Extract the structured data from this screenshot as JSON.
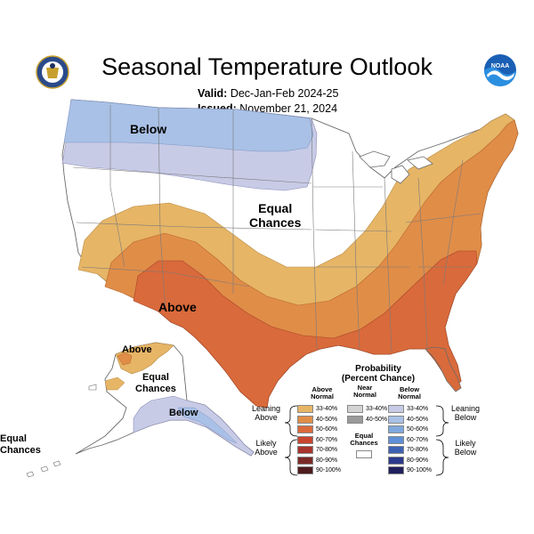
{
  "header": {
    "title": "Seasonal Temperature Outlook",
    "valid_label": "Valid:",
    "valid_value": "Dec-Jan-Feb 2024-25",
    "issued_label": "Issued:",
    "issued_value": "November 21, 2024",
    "noaa_text": "NOAA"
  },
  "map_labels": {
    "conus_below": "Below",
    "conus_equal": "Equal\nChances",
    "conus_above": "Above",
    "alaska_above": "Above",
    "alaska_equal": "Equal\nChances",
    "alaska_below": "Below",
    "corner_equal": "Equal\nChances"
  },
  "legend": {
    "title": "Probability\n(Percent Chance)",
    "above_header": "Above\nNormal",
    "near_header": "Near\nNormal",
    "below_header": "Below\nNormal",
    "above_items": [
      {
        "label": "33-40%",
        "color": "#e6b566"
      },
      {
        "label": "40-50%",
        "color": "#e08d48"
      },
      {
        "label": "50-60%",
        "color": "#d96a3b"
      },
      {
        "label": "60-70%",
        "color": "#c8452e"
      },
      {
        "label": "70-80%",
        "color": "#a8342c"
      },
      {
        "label": "80-90%",
        "color": "#7c2a26"
      },
      {
        "label": "90-100%",
        "color": "#4e1c1c"
      }
    ],
    "near_items": [
      {
        "label": "33-40%",
        "color": "#d3d3d3"
      },
      {
        "label": "40-50%",
        "color": "#9a9a9a"
      }
    ],
    "below_items": [
      {
        "label": "33-40%",
        "color": "#c7cbe6"
      },
      {
        "label": "40-50%",
        "color": "#a9c1e6"
      },
      {
        "label": "50-60%",
        "color": "#7fa8dc"
      },
      {
        "label": "60-70%",
        "color": "#5f8fd6"
      },
      {
        "label": "70-80%",
        "color": "#3e62b3"
      },
      {
        "label": "80-90%",
        "color": "#2c3a8c"
      },
      {
        "label": "90-100%",
        "color": "#1f1f5c"
      }
    ],
    "equal_chances": "Equal\nChances",
    "leaning_above": "Leaning\nAbove",
    "likely_above": "Likely\nAbove",
    "leaning_below": "Leaning\nBelow",
    "likely_below": "Likely\nBelow"
  },
  "colors": {
    "above_33": "#e6b566",
    "above_40": "#e08d48",
    "above_50": "#d96a3b",
    "below_33": "#c7cbe6",
    "below_40": "#a9c1e6",
    "equal": "#ffffff"
  }
}
